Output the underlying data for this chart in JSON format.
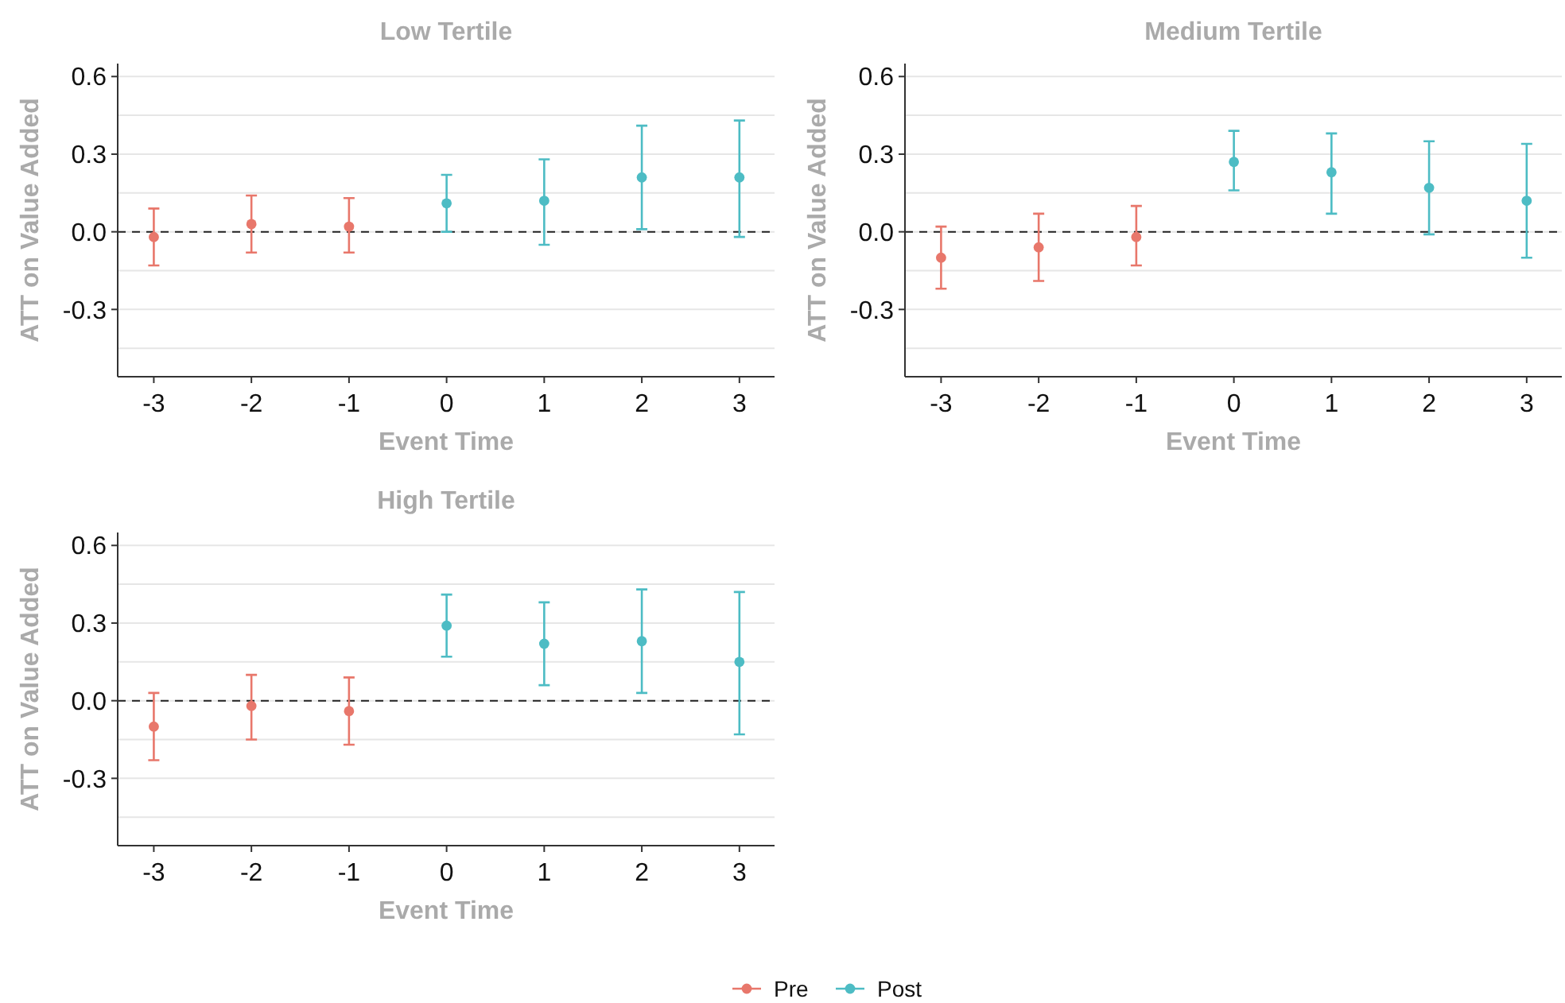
{
  "chart_data": [
    {
      "type": "scatter",
      "title": "Low Tertile",
      "xlabel": "Event Time",
      "ylabel": "ATT on Value Added",
      "xlim": [
        -3.37,
        3.36
      ],
      "xticks": [
        -3,
        -2,
        -1,
        0,
        1,
        2,
        3
      ],
      "ylim": [
        -0.56,
        0.65
      ],
      "yticks": [
        {
          "value": -0.45,
          "label": null
        },
        -0.3,
        {
          "value": -0.15,
          "label": null
        },
        {
          "value": 0,
          "label": "0.0"
        },
        {
          "value": 0.15,
          "label": null
        },
        0.3,
        {
          "value": 0.45,
          "label": null
        },
        0.6
      ],
      "grid": "y",
      "marker": "circle",
      "legend": "bottom",
      "ref_lines": [
        {
          "axis": "y",
          "value": 0,
          "line_style": "dashed",
          "color": "#222222"
        }
      ],
      "series": [
        {
          "name": "Pre",
          "color": "#e8776b",
          "x": [
            -3,
            -2,
            -1
          ],
          "values": [
            -0.02,
            0.03,
            0.02
          ],
          "errors": [
            [
              -0.13,
              0.09
            ],
            [
              -0.08,
              0.14
            ],
            [
              -0.08,
              0.13
            ]
          ]
        },
        {
          "name": "Post",
          "color": "#4dbcc4",
          "x": [
            0,
            1,
            2,
            3
          ],
          "values": [
            0.11,
            0.12,
            0.21,
            0.21
          ],
          "errors": [
            [
              0.0,
              0.22
            ],
            [
              -0.05,
              0.28
            ],
            [
              0.01,
              0.41
            ],
            [
              -0.02,
              0.43
            ]
          ]
        }
      ]
    },
    {
      "type": "scatter",
      "title": "Medium Tertile",
      "xlabel": "Event Time",
      "ylabel": "ATT on Value Added",
      "xlim": [
        -3.37,
        3.36
      ],
      "xticks": [
        -3,
        -2,
        -1,
        0,
        1,
        2,
        3
      ],
      "ylim": [
        -0.56,
        0.65
      ],
      "yticks": [
        {
          "value": -0.45,
          "label": null
        },
        -0.3,
        {
          "value": -0.15,
          "label": null
        },
        {
          "value": 0,
          "label": "0.0"
        },
        {
          "value": 0.15,
          "label": null
        },
        0.3,
        {
          "value": 0.45,
          "label": null
        },
        0.6
      ],
      "grid": "y",
      "marker": "circle",
      "ref_lines": [
        {
          "axis": "y",
          "value": 0,
          "line_style": "dashed",
          "color": "#222222"
        }
      ],
      "series": [
        {
          "color": "#e8776b",
          "x": [
            -3,
            -2,
            -1
          ],
          "values": [
            -0.1,
            -0.06,
            -0.02
          ],
          "errors": [
            [
              -0.22,
              0.02
            ],
            [
              -0.19,
              0.07
            ],
            [
              -0.13,
              0.1
            ]
          ]
        },
        {
          "color": "#4dbcc4",
          "x": [
            0,
            1,
            2,
            3
          ],
          "values": [
            0.27,
            0.23,
            0.17,
            0.12
          ],
          "errors": [
            [
              0.16,
              0.39
            ],
            [
              0.07,
              0.38
            ],
            [
              -0.01,
              0.35
            ],
            [
              -0.1,
              0.34
            ]
          ]
        }
      ]
    },
    {
      "type": "scatter",
      "title": "High Tertile",
      "xlabel": "Event Time",
      "ylabel": "ATT on Value Added",
      "xlim": [
        -3.37,
        3.36
      ],
      "xticks": [
        -3,
        -2,
        -1,
        0,
        1,
        2,
        3
      ],
      "ylim": [
        -0.56,
        0.65
      ],
      "yticks": [
        {
          "value": -0.45,
          "label": null
        },
        -0.3,
        {
          "value": -0.15,
          "label": null
        },
        {
          "value": 0,
          "label": "0.0"
        },
        {
          "value": 0.15,
          "label": null
        },
        0.3,
        {
          "value": 0.45,
          "label": null
        },
        0.6
      ],
      "grid": "y",
      "marker": "circle",
      "ref_lines": [
        {
          "axis": "y",
          "value": 0,
          "line_style": "dashed",
          "color": "#222222"
        }
      ],
      "series": [
        {
          "color": "#e8776b",
          "x": [
            -3,
            -2,
            -1
          ],
          "values": [
            -0.1,
            -0.02,
            -0.04
          ],
          "errors": [
            [
              -0.23,
              0.03
            ],
            [
              -0.15,
              0.1
            ],
            [
              -0.17,
              0.09
            ]
          ]
        },
        {
          "color": "#4dbcc4",
          "x": [
            0,
            1,
            2,
            3
          ],
          "values": [
            0.29,
            0.22,
            0.23,
            0.15
          ],
          "errors": [
            [
              0.17,
              0.41
            ],
            [
              0.06,
              0.38
            ],
            [
              0.03,
              0.43
            ],
            [
              -0.13,
              0.42
            ]
          ]
        }
      ]
    }
  ]
}
